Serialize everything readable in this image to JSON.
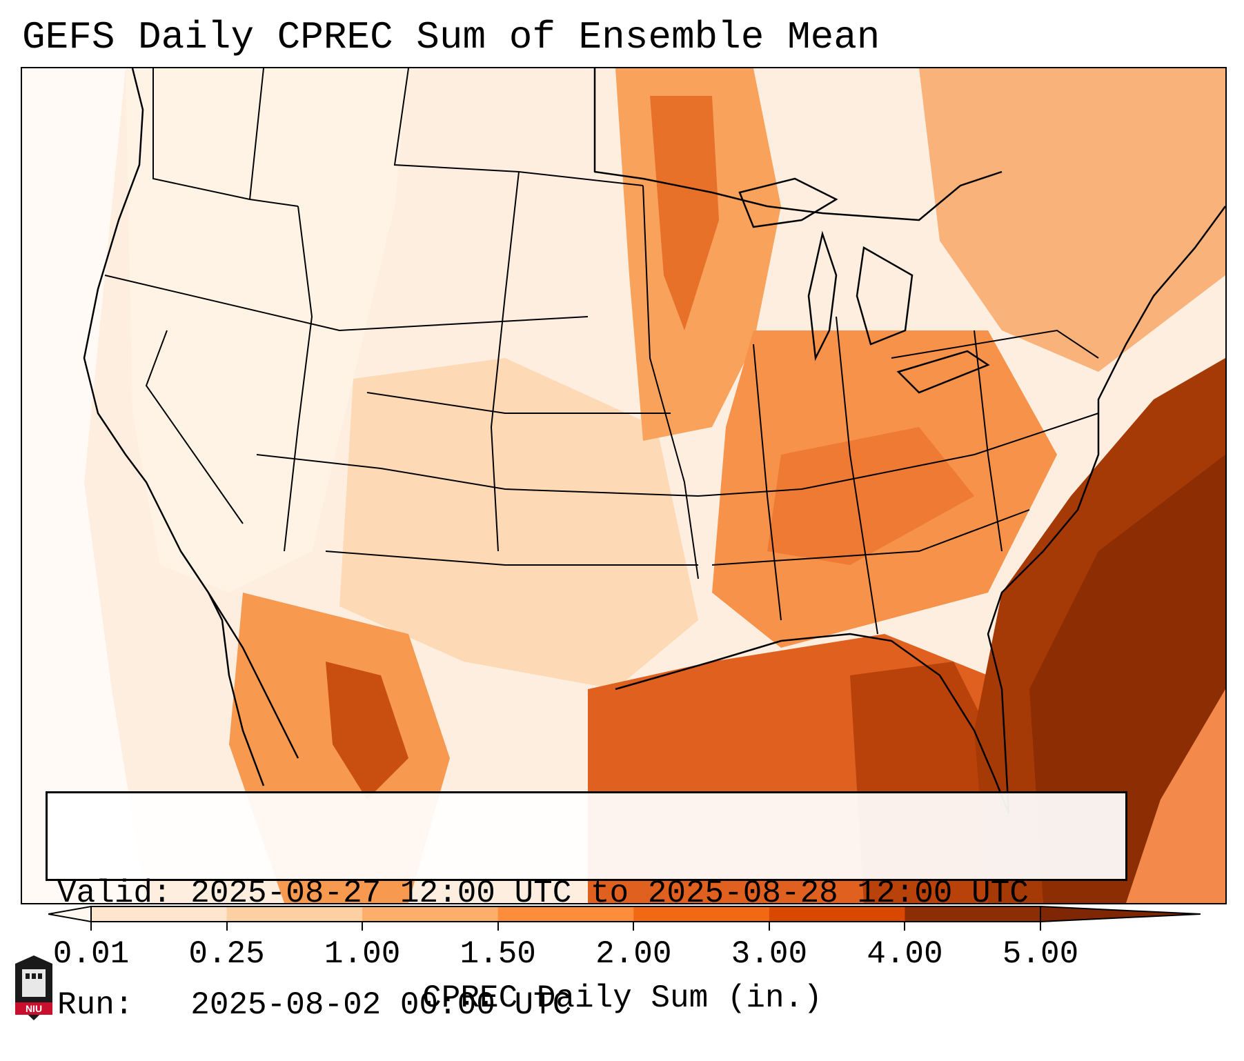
{
  "title": "GEFS Daily CPREC Sum of Ensemble Mean",
  "info": {
    "valid_line": "Valid: 2025-08-27 12:00 UTC to 2025-08-28 12:00 UTC",
    "run_line": "Run:   2025-08-02 00:00 UTC"
  },
  "colorbar": {
    "label": "CPREC Daily Sum (in.)",
    "ticks": [
      "0.01",
      "0.25",
      "1.00",
      "1.50",
      "2.00",
      "3.00",
      "4.00",
      "5.00"
    ],
    "colors": [
      "#fff5eb",
      "#fee6ce",
      "#fdd0a2",
      "#fdae6b",
      "#fd8d3c",
      "#f16913",
      "#d94801",
      "#8c2d04"
    ],
    "under_color": "#fff8f0",
    "over_color": "#7f2704"
  },
  "logo": {
    "text": "NIU"
  },
  "colors": {
    "state_lines": "#000000",
    "ocean_features": "#c8d7e6"
  }
}
